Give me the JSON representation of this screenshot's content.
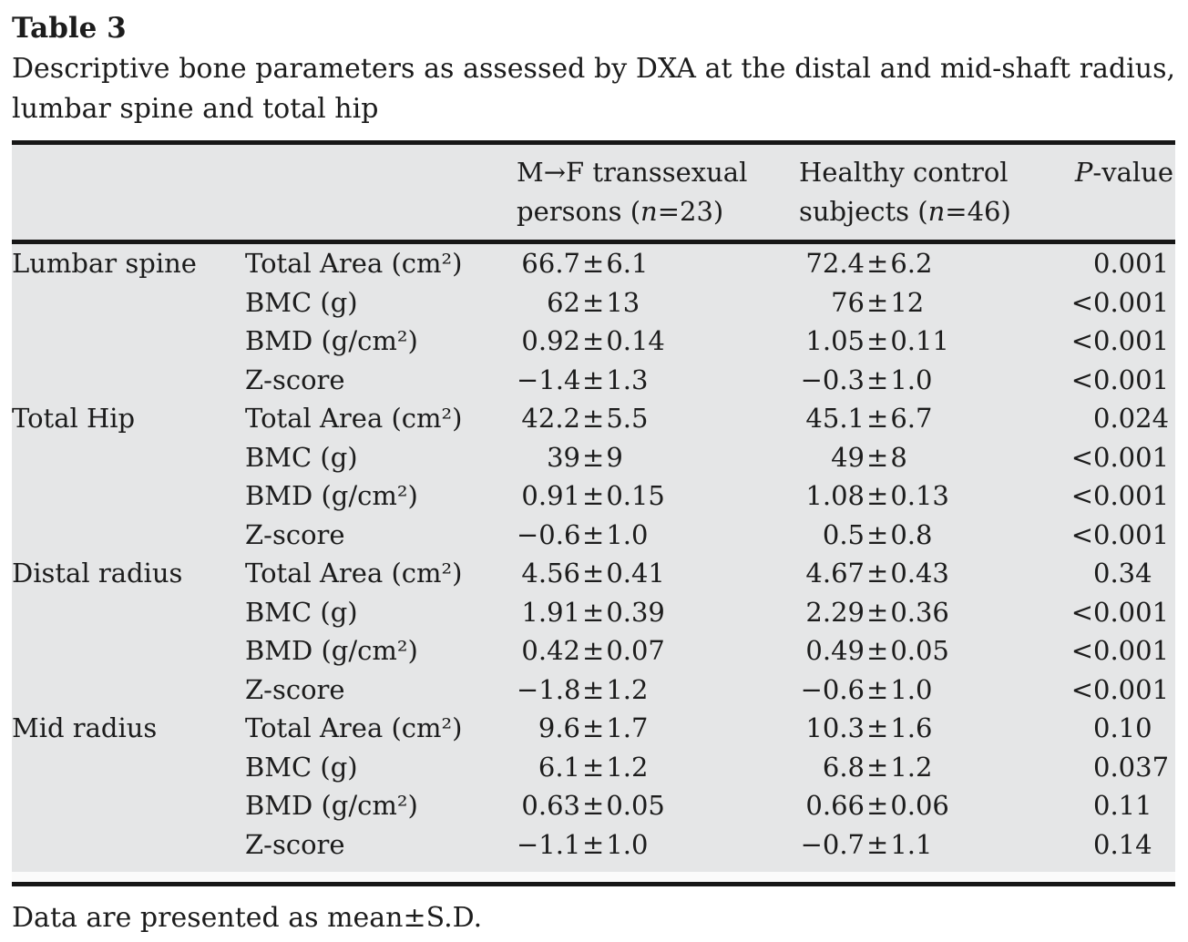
{
  "page": {
    "title": "Table 3",
    "caption_lines": [
      "Descriptive bone parameters as assessed by DXA at the distal and mid-shaft radius,",
      "lumbar spine and total hip"
    ],
    "footnote": "Data are presented as mean±S.D."
  },
  "table": {
    "header": {
      "ts_group": {
        "line1": "M→F transsexual",
        "line2_pre": "persons (",
        "n_var": "n",
        "line2_post": "=23)"
      },
      "control_group": {
        "line1": "Healthy control",
        "line2_pre": "subjects (",
        "n_var": "n",
        "line2_post": "=46)"
      },
      "p_col": {
        "p_var": "P",
        "rest": "-value"
      }
    },
    "symbols": {
      "plus_minus": "±"
    },
    "groups": [
      {
        "region": "Lumbar spine",
        "rows": [
          {
            "param": "Total Area (cm²)",
            "ts_mean": "66.7",
            "ts_sd": "6.1",
            "ctrl_mean": "72.4",
            "ctrl_sd": "6.2",
            "p_prefix": "",
            "p_value": "0.001"
          },
          {
            "param": "BMC (g)",
            "ts_mean": "62",
            "ts_sd": "13",
            "ctrl_mean": "76",
            "ctrl_sd": "12",
            "p_prefix": "<",
            "p_value": "0.001"
          },
          {
            "param": "BMD (g/cm²)",
            "ts_mean": "0.92",
            "ts_sd": "0.14",
            "ctrl_mean": "1.05",
            "ctrl_sd": "0.11",
            "p_prefix": "<",
            "p_value": "0.001"
          },
          {
            "param": "Z-score",
            "ts_mean": "−1.4",
            "ts_sd": "1.3",
            "ctrl_mean": "−0.3",
            "ctrl_sd": "1.0",
            "p_prefix": "<",
            "p_value": "0.001"
          }
        ]
      },
      {
        "region": "Total Hip",
        "rows": [
          {
            "param": "Total Area (cm²)",
            "ts_mean": "42.2",
            "ts_sd": "5.5",
            "ctrl_mean": "45.1",
            "ctrl_sd": "6.7",
            "p_prefix": "",
            "p_value": "0.024"
          },
          {
            "param": "BMC (g)",
            "ts_mean": "39",
            "ts_sd": "9",
            "ctrl_mean": "49",
            "ctrl_sd": "8",
            "p_prefix": "<",
            "p_value": "0.001"
          },
          {
            "param": "BMD (g/cm²)",
            "ts_mean": "0.91",
            "ts_sd": "0.15",
            "ctrl_mean": "1.08",
            "ctrl_sd": "0.13",
            "p_prefix": "<",
            "p_value": "0.001"
          },
          {
            "param": "Z-score",
            "ts_mean": "−0.6",
            "ts_sd": "1.0",
            "ctrl_mean": "0.5",
            "ctrl_sd": "0.8",
            "p_prefix": "<",
            "p_value": "0.001"
          }
        ]
      },
      {
        "region": "Distal radius",
        "rows": [
          {
            "param": "Total Area (cm²)",
            "ts_mean": "4.56",
            "ts_sd": "0.41",
            "ctrl_mean": "4.67",
            "ctrl_sd": "0.43",
            "p_prefix": "",
            "p_value": "0.34"
          },
          {
            "param": "BMC (g)",
            "ts_mean": "1.91",
            "ts_sd": "0.39",
            "ctrl_mean": "2.29",
            "ctrl_sd": "0.36",
            "p_prefix": "<",
            "p_value": "0.001"
          },
          {
            "param": "BMD (g/cm²)",
            "ts_mean": "0.42",
            "ts_sd": "0.07",
            "ctrl_mean": "0.49",
            "ctrl_sd": "0.05",
            "p_prefix": "<",
            "p_value": "0.001"
          },
          {
            "param": "Z-score",
            "ts_mean": "−1.8",
            "ts_sd": "1.2",
            "ctrl_mean": "−0.6",
            "ctrl_sd": "1.0",
            "p_prefix": "<",
            "p_value": "0.001"
          }
        ]
      },
      {
        "region": "Mid radius",
        "rows": [
          {
            "param": "Total Area (cm²)",
            "ts_mean": "9.6",
            "ts_sd": "1.7",
            "ctrl_mean": "10.3",
            "ctrl_sd": "1.6",
            "p_prefix": "",
            "p_value": "0.10"
          },
          {
            "param": "BMC (g)",
            "ts_mean": "6.1",
            "ts_sd": "1.2",
            "ctrl_mean": "6.8",
            "ctrl_sd": "1.2",
            "p_prefix": "",
            "p_value": "0.037"
          },
          {
            "param": "BMD (g/cm²)",
            "ts_mean": "0.63",
            "ts_sd": "0.05",
            "ctrl_mean": "0.66",
            "ctrl_sd": "0.06",
            "p_prefix": "",
            "p_value": "0.11"
          },
          {
            "param": "Z-score",
            "ts_mean": "−1.1",
            "ts_sd": "1.0",
            "ctrl_mean": "−0.7",
            "ctrl_sd": "1.1",
            "p_prefix": "",
            "p_value": "0.14"
          }
        ]
      }
    ]
  },
  "colors": {
    "table_band": "#e5e6e7",
    "rule": "#171717",
    "text": "#1c1c1c",
    "page_background": "#ffffff"
  }
}
